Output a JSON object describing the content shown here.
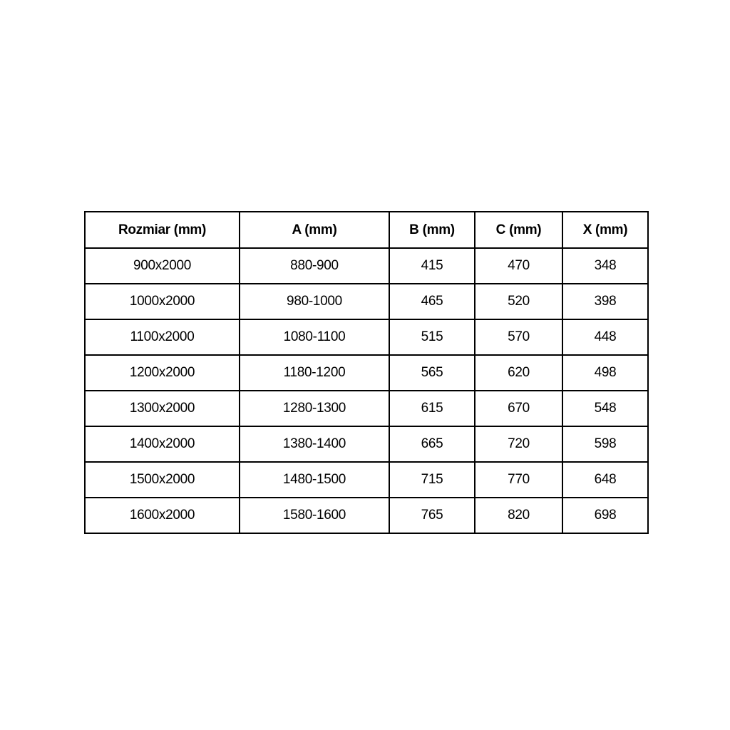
{
  "page": {
    "background_color": "#ffffff",
    "text_color": "#000000",
    "border_color": "#000000"
  },
  "chart_data": {
    "type": "table",
    "title": "",
    "columns": [
      "Rozmiar (mm)",
      "A (mm)",
      "B (mm)",
      "C (mm)",
      "X (mm)"
    ],
    "rows": [
      [
        "900x2000",
        "880-900",
        "415",
        "470",
        "348"
      ],
      [
        "1000x2000",
        "980-1000",
        "465",
        "520",
        "398"
      ],
      [
        "1100x2000",
        "1080-1100",
        "515",
        "570",
        "448"
      ],
      [
        "1200x2000",
        "1180-1200",
        "565",
        "620",
        "498"
      ],
      [
        "1300x2000",
        "1280-1300",
        "615",
        "670",
        "548"
      ],
      [
        "1400x2000",
        "1380-1400",
        "665",
        "720",
        "598"
      ],
      [
        "1500x2000",
        "1480-1500",
        "715",
        "770",
        "648"
      ],
      [
        "1600x2000",
        "1580-1600",
        "765",
        "820",
        "698"
      ]
    ]
  }
}
